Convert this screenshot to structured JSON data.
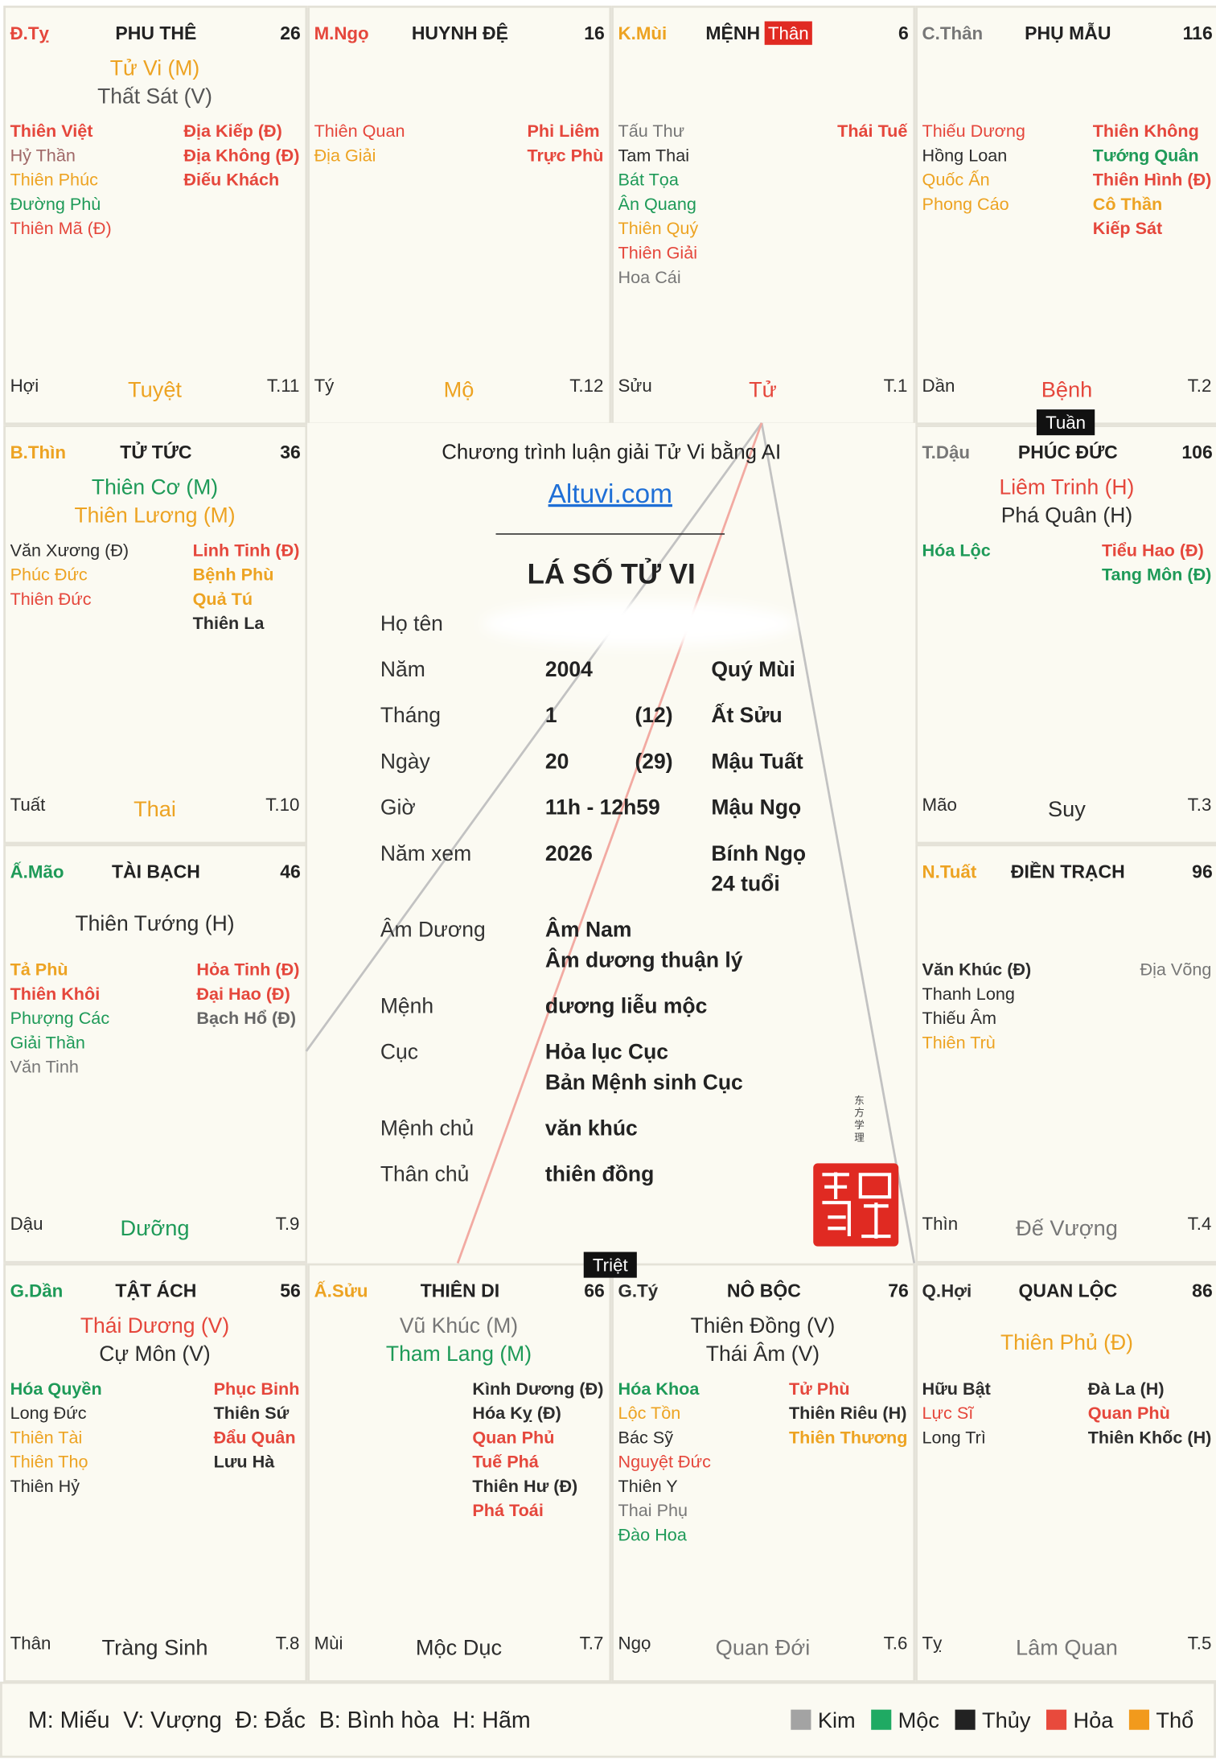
{
  "palaces": [
    {
      "can_chi": "Đ.Tỵ",
      "can_color": "#e5473c",
      "name": "PHU THÊ",
      "number": "26",
      "main_stars": [
        {
          "name": "Tử Vi (M)",
          "color": "#eda322"
        },
        {
          "name": "Thất Sát (V)",
          "color": "#555555"
        }
      ],
      "left_stars": [
        {
          "name": "Thiên Việt",
          "color": "#e5473c",
          "bold": true
        },
        {
          "name": "Hỷ Thần",
          "color": "#a06868"
        },
        {
          "name": "Thiên Phúc",
          "color": "#eda322"
        },
        {
          "name": "Đường Phù",
          "color": "#1e9a58"
        },
        {
          "name": "Thiên Mã (Đ)",
          "color": "#e5473c"
        }
      ],
      "right_stars": [
        {
          "name": "Địa Kiếp (Đ)",
          "color": "#e5473c",
          "bold": true
        },
        {
          "name": "Địa Không (Đ)",
          "color": "#e5473c",
          "bold": true
        },
        {
          "name": "Điếu Khách",
          "color": "#e5473c",
          "bold": true
        }
      ],
      "branch": "Hợi",
      "stage": "Tuyệt",
      "stage_color": "#eda322",
      "month": "T.11"
    },
    {
      "can_chi": "M.Ngọ",
      "can_color": "#e5473c",
      "name": "HUYNH ĐỆ",
      "number": "16",
      "main_stars": [],
      "left_stars": [
        {
          "name": "Thiên Quan",
          "color": "#e5473c"
        },
        {
          "name": "Địa Giải",
          "color": "#eda322"
        }
      ],
      "right_stars": [
        {
          "name": "Phi Liêm",
          "color": "#e5473c",
          "bold": true
        },
        {
          "name": "Trực Phù",
          "color": "#e5473c",
          "bold": true
        }
      ],
      "branch": "Tý",
      "stage": "Mộ",
      "stage_color": "#eda322",
      "month": "T.12"
    },
    {
      "can_chi": "K.Mùi",
      "can_color": "#eda322",
      "name": "MỆNH",
      "tag": "Thân",
      "number": "6",
      "main_stars": [],
      "left_stars": [
        {
          "name": "Tấu Thư",
          "color": "#777777"
        },
        {
          "name": "Tam Thai",
          "color": "#2d2d2d"
        },
        {
          "name": "Bát Tọa",
          "color": "#1e9a58"
        },
        {
          "name": "Ân Quang",
          "color": "#1e9a58"
        },
        {
          "name": "Thiên Quý",
          "color": "#eda322"
        },
        {
          "name": "Thiên Giải",
          "color": "#e5473c"
        },
        {
          "name": "Hoa Cái",
          "color": "#777777"
        }
      ],
      "right_stars": [
        {
          "name": "Thái Tuế",
          "color": "#e5473c",
          "bold": true
        }
      ],
      "branch": "Sửu",
      "stage": "Tử",
      "stage_color": "#e5473c",
      "month": "T.1"
    },
    {
      "can_chi": "C.Thân",
      "can_color": "#777777",
      "name": "PHỤ MẪU",
      "number": "116",
      "main_stars": [],
      "left_stars": [
        {
          "name": "Thiếu Dương",
          "color": "#e5473c"
        },
        {
          "name": "Hồng Loan",
          "color": "#2d2d2d"
        },
        {
          "name": "Quốc Ấn",
          "color": "#eda322"
        },
        {
          "name": "Phong Cáo",
          "color": "#eda322"
        }
      ],
      "right_stars": [
        {
          "name": "Thiên Không",
          "color": "#e5473c",
          "bold": true
        },
        {
          "name": "Tướng Quân",
          "color": "#1e9a58",
          "bold": true
        },
        {
          "name": "Thiên Hình (Đ)",
          "color": "#e5473c",
          "bold": true
        },
        {
          "name": "Cô Thần",
          "color": "#eda322",
          "bold": true
        },
        {
          "name": "Kiếp Sát",
          "color": "#e5473c",
          "bold": true
        }
      ],
      "branch": "Dần",
      "stage": "Bệnh",
      "stage_color": "#e5473c",
      "month": "T.2"
    },
    {
      "can_chi": "B.Thìn",
      "can_color": "#eda322",
      "name": "TỬ TỨC",
      "number": "36",
      "main_stars": [
        {
          "name": "Thiên Cơ (M)",
          "color": "#1e9a58"
        },
        {
          "name": "Thiên Lương (M)",
          "color": "#eda322"
        }
      ],
      "left_stars": [
        {
          "name": "Văn Xương (Đ)",
          "color": "#2d2d2d"
        },
        {
          "name": "Phúc Đức",
          "color": "#eda322"
        },
        {
          "name": "Thiên Đức",
          "color": "#e5473c"
        }
      ],
      "right_stars": [
        {
          "name": "Linh Tinh (Đ)",
          "color": "#e5473c",
          "bold": true
        },
        {
          "name": "Bệnh Phù",
          "color": "#eda322",
          "bold": true
        },
        {
          "name": "Quả Tú",
          "color": "#eda322",
          "bold": true
        },
        {
          "name": "Thiên La",
          "color": "#2d2d2d",
          "bold": true
        }
      ],
      "branch": "Tuất",
      "stage": "Thai",
      "stage_color": "#eda322",
      "month": "T.10"
    },
    {
      "can_chi": "T.Dậu",
      "can_color": "#777777",
      "name": "PHÚC ĐỨC",
      "number": "106",
      "main_stars": [
        {
          "name": "Liêm Trinh (H)",
          "color": "#e5473c"
        },
        {
          "name": "Phá Quân (H)",
          "color": "#2d2d2d"
        }
      ],
      "left_stars": [
        {
          "name": "Hóa Lộc",
          "color": "#1e9a58",
          "bold": true
        }
      ],
      "right_stars": [
        {
          "name": "Tiểu Hao (Đ)",
          "color": "#e5473c",
          "bold": true
        },
        {
          "name": "Tang Môn (Đ)",
          "color": "#1e9a58",
          "bold": true
        }
      ],
      "branch": "Mão",
      "stage": "Suy",
      "stage_color": "#2d2d2d",
      "month": "T.3"
    },
    {
      "can_chi": "Ấ.Mão",
      "can_color": "#1e9a58",
      "name": "TÀI BẠCH",
      "number": "46",
      "main_stars": [
        {
          "name": "Thiên Tướng (H)",
          "color": "#2d2d2d"
        }
      ],
      "left_stars": [
        {
          "name": "Tả Phù",
          "color": "#eda322",
          "bold": true
        },
        {
          "name": "Thiên Khôi",
          "color": "#e5473c",
          "bold": true
        },
        {
          "name": "Phượng Các",
          "color": "#1e9a58"
        },
        {
          "name": "Giải Thần",
          "color": "#1e9a58"
        },
        {
          "name": "Văn Tinh",
          "color": "#777777"
        }
      ],
      "right_stars": [
        {
          "name": "Hỏa Tinh (Đ)",
          "color": "#e5473c",
          "bold": true
        },
        {
          "name": "Đại Hao (Đ)",
          "color": "#e5473c",
          "bold": true
        },
        {
          "name": "Bạch Hổ (Đ)",
          "color": "#666666",
          "bold": true
        }
      ],
      "branch": "Dậu",
      "stage": "Dưỡng",
      "stage_color": "#1e9a58",
      "month": "T.9"
    },
    {
      "can_chi": "N.Tuất",
      "can_color": "#eda322",
      "name": "ĐIỀN TRẠCH",
      "number": "96",
      "main_stars": [],
      "left_stars": [
        {
          "name": "Văn Khúc (Đ)",
          "color": "#2d2d2d",
          "bold": true
        },
        {
          "name": "Thanh Long",
          "color": "#2d2d2d"
        },
        {
          "name": "Thiếu Âm",
          "color": "#2d2d2d"
        },
        {
          "name": "Thiên Trù",
          "color": "#eda322"
        }
      ],
      "right_stars": [
        {
          "name": "Địa Võng",
          "color": "#777777"
        }
      ],
      "branch": "Thìn",
      "stage": "Đế Vượng",
      "stage_color": "#777777",
      "month": "T.4"
    },
    {
      "can_chi": "G.Dần",
      "can_color": "#1e9a58",
      "name": "TẬT ÁCH",
      "number": "56",
      "main_stars": [
        {
          "name": "Thái Dương (V)",
          "color": "#e5473c"
        },
        {
          "name": "Cự Môn (V)",
          "color": "#2d2d2d"
        }
      ],
      "left_stars": [
        {
          "name": "Hóa Quyền",
          "color": "#1e9a58",
          "bold": true
        },
        {
          "name": "Long Đức",
          "color": "#2d2d2d"
        },
        {
          "name": "Thiên Tài",
          "color": "#eda322"
        },
        {
          "name": "Thiên Thọ",
          "color": "#eda322"
        },
        {
          "name": "Thiên Hỷ",
          "color": "#2d2d2d"
        }
      ],
      "right_stars": [
        {
          "name": "Phục Binh",
          "color": "#e5473c",
          "bold": true
        },
        {
          "name": "Thiên Sứ",
          "color": "#2d2d2d",
          "bold": true
        },
        {
          "name": "Đẩu Quân",
          "color": "#e5473c",
          "bold": true
        },
        {
          "name": "Lưu Hà",
          "color": "#2d2d2d",
          "bold": true
        }
      ],
      "branch": "Thân",
      "stage": "Tràng Sinh",
      "stage_color": "#2d2d2d",
      "month": "T.8"
    },
    {
      "can_chi": "Ấ.Sửu",
      "can_color": "#eda322",
      "name": "THIÊN DI",
      "number": "66",
      "main_stars": [
        {
          "name": "Vũ Khúc (M)",
          "color": "#777777"
        },
        {
          "name": "Tham Lang (M)",
          "color": "#1e9a58"
        }
      ],
      "left_stars": [],
      "right_stars": [
        {
          "name": "Kình Dương (Đ)",
          "color": "#2d2d2d",
          "bold": true
        },
        {
          "name": "Hóa Kỵ (Đ)",
          "color": "#2d2d2d",
          "bold": true
        },
        {
          "name": "Quan Phủ",
          "color": "#e5473c",
          "bold": true
        },
        {
          "name": "Tuế Phá",
          "color": "#e5473c",
          "bold": true
        },
        {
          "name": "Thiên Hư (Đ)",
          "color": "#2d2d2d",
          "bold": true
        },
        {
          "name": "Phá Toái",
          "color": "#e5473c",
          "bold": true
        }
      ],
      "branch": "Mùi",
      "stage": "Mộc Dục",
      "stage_color": "#2d2d2d",
      "month": "T.7"
    },
    {
      "can_chi": "G.Tý",
      "can_color": "#2d2d2d",
      "name": "NÔ BỘC",
      "number": "76",
      "main_stars": [
        {
          "name": "Thiên Đồng (V)",
          "color": "#2d2d2d"
        },
        {
          "name": "Thái Âm (V)",
          "color": "#2d2d2d"
        }
      ],
      "left_stars": [
        {
          "name": "Hóa Khoa",
          "color": "#1e9a58",
          "bold": true
        },
        {
          "name": "Lộc Tồn",
          "color": "#eda322"
        },
        {
          "name": "Bác Sỹ",
          "color": "#2d2d2d"
        },
        {
          "name": "Nguyệt Đức",
          "color": "#e5473c"
        },
        {
          "name": "Thiên Y",
          "color": "#2d2d2d"
        },
        {
          "name": "Thai Phụ",
          "color": "#777777"
        },
        {
          "name": "Đào Hoa",
          "color": "#1e9a58"
        }
      ],
      "right_stars": [
        {
          "name": "Tử Phù",
          "color": "#e5473c",
          "bold": true
        },
        {
          "name": "Thiên Riêu (H)",
          "color": "#2d2d2d",
          "bold": true
        },
        {
          "name": "Thiên Thương",
          "color": "#eda322",
          "bold": true
        }
      ],
      "branch": "Ngọ",
      "stage": "Quan Đới",
      "stage_color": "#777777",
      "month": "T.6"
    },
    {
      "can_chi": "Q.Hợi",
      "can_color": "#2d2d2d",
      "name": "QUAN LỘC",
      "number": "86",
      "main_stars": [
        {
          "name": "Thiên Phủ (Đ)",
          "color": "#eda322"
        }
      ],
      "left_stars": [
        {
          "name": "Hữu Bật",
          "color": "#2d2d2d",
          "bold": true
        },
        {
          "name": "Lực Sĩ",
          "color": "#e5473c"
        },
        {
          "name": "Long Trì",
          "color": "#2d2d2d"
        }
      ],
      "right_stars": [
        {
          "name": "Đà La (H)",
          "color": "#2d2d2d",
          "bold": true
        },
        {
          "name": "Quan Phù",
          "color": "#e5473c",
          "bold": true
        },
        {
          "name": "Thiên Khốc (H)",
          "color": "#2d2d2d",
          "bold": true
        }
      ],
      "branch": "Tỵ",
      "stage": "Lâm Quan",
      "stage_color": "#777777",
      "month": "T.5"
    }
  ],
  "markers": {
    "tuan": "Tuần",
    "triet": "Triệt"
  },
  "center": {
    "subtitle": "Chương trình luận giải Tử Vi bằng AI",
    "link": "Altuvi.com",
    "title": "LÁ SỐ TỬ VI",
    "rows": [
      {
        "label": "Họ tên",
        "values": [],
        "side": []
      },
      {
        "label": "Năm",
        "values": [
          "2004"
        ],
        "side": [
          "Quý Mùi"
        ]
      },
      {
        "label": "Tháng",
        "values": [
          "1"
        ],
        "note": "(12)",
        "side": [
          "Ất Sửu"
        ]
      },
      {
        "label": "Ngày",
        "values": [
          "20"
        ],
        "note": "(29)",
        "side": [
          "Mậu Tuất"
        ]
      },
      {
        "label": "Giờ",
        "values": [
          "11h - 12h59"
        ],
        "side": [
          "Mậu Ngọ"
        ]
      },
      {
        "label": "Năm xem",
        "values": [
          "2026"
        ],
        "side": [
          "Bính Ngọ",
          "24 tuổi"
        ]
      },
      {
        "label": "Âm Dương",
        "values": [
          "Âm Nam",
          "Âm dương thuận lý"
        ],
        "side": []
      },
      {
        "label": "Mệnh",
        "values": [
          "dương liễu mộc"
        ],
        "side": []
      },
      {
        "label": "Cục",
        "values": [
          "Hỏa lục Cục",
          "Bản Mệnh sinh Cục"
        ],
        "side": []
      },
      {
        "label": "Mệnh chủ",
        "values": [
          "văn khúc"
        ],
        "side": []
      },
      {
        "label": "Thân chủ",
        "values": [
          "thiên đồng"
        ],
        "side": []
      }
    ],
    "seal_caption": "东方学理"
  },
  "legend": {
    "abbreviations": [
      "M: Miếu",
      "V: Vượng",
      "Đ: Đắc",
      "B: Bình hòa",
      "H: Hãm"
    ],
    "elements": [
      {
        "name": "Kim",
        "color": "#a3a3a3"
      },
      {
        "name": "Mộc",
        "color": "#1faa63"
      },
      {
        "name": "Thủy",
        "color": "#222222"
      },
      {
        "name": "Hỏa",
        "color": "#e84a3c"
      },
      {
        "name": "Thổ",
        "color": "#f29a1c"
      }
    ]
  }
}
